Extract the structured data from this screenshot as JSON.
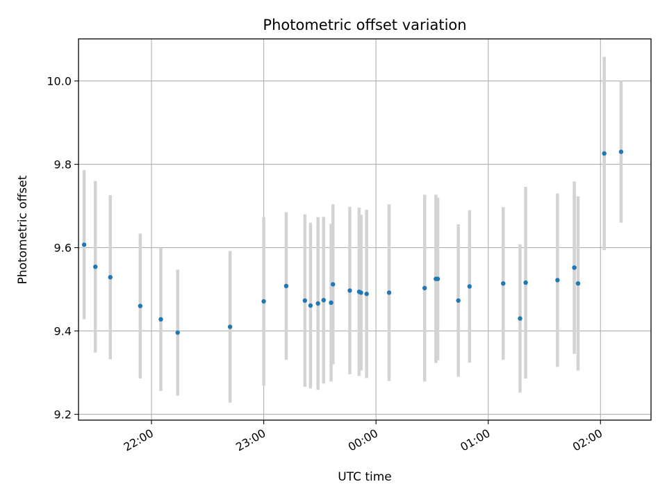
{
  "chart_data": {
    "type": "scatter",
    "title": "Photometric offset variation",
    "xlabel": "UTC time",
    "ylabel": "Photometric offset",
    "x_ticks": [
      "22:00",
      "23:00",
      "00:00",
      "01:00",
      "02:00"
    ],
    "y_ticks": [
      "9.2",
      "9.4",
      "9.6",
      "9.8",
      "10.0"
    ],
    "xlim": [
      "21:21",
      "02:27"
    ],
    "ylim": [
      9.186,
      10.101
    ],
    "grid": true,
    "colors": {
      "points": "#1f77b4",
      "errorbars": "#d3d3d3",
      "grid": "#b0b0b0"
    },
    "series": [
      {
        "points": [
          {
            "x": "21:24",
            "y": 9.607,
            "err": 0.179
          },
          {
            "x": "21:30",
            "y": 9.554,
            "err": 0.206
          },
          {
            "x": "21:38",
            "y": 9.529,
            "err": 0.197
          },
          {
            "x": "21:54",
            "y": 9.46,
            "err": 0.174
          },
          {
            "x": "22:05",
            "y": 9.428,
            "err": 0.172
          },
          {
            "x": "22:14",
            "y": 9.396,
            "err": 0.151
          },
          {
            "x": "22:42",
            "y": 9.41,
            "err": 0.182
          },
          {
            "x": "23:00",
            "y": 9.471,
            "err": 0.202
          },
          {
            "x": "23:12",
            "y": 9.508,
            "err": 0.177
          },
          {
            "x": "23:22",
            "y": 9.473,
            "err": 0.207
          },
          {
            "x": "23:25",
            "y": 9.461,
            "err": 0.199
          },
          {
            "x": "23:29",
            "y": 9.466,
            "err": 0.207
          },
          {
            "x": "23:32",
            "y": 9.474,
            "err": 0.2
          },
          {
            "x": "23:36",
            "y": 9.468,
            "err": 0.189
          },
          {
            "x": "23:37",
            "y": 9.512,
            "err": 0.192
          },
          {
            "x": "23:46",
            "y": 9.497,
            "err": 0.201
          },
          {
            "x": "23:51",
            "y": 9.494,
            "err": 0.202
          },
          {
            "x": "23:52",
            "y": 9.492,
            "err": 0.187
          },
          {
            "x": "23:55",
            "y": 9.489,
            "err": 0.202
          },
          {
            "x": "00:07",
            "y": 9.492,
            "err": 0.212
          },
          {
            "x": "00:26",
            "y": 9.503,
            "err": 0.224
          },
          {
            "x": "00:32",
            "y": 9.525,
            "err": 0.202
          },
          {
            "x": "00:33",
            "y": 9.525,
            "err": 0.195
          },
          {
            "x": "00:44",
            "y": 9.473,
            "err": 0.183
          },
          {
            "x": "00:50",
            "y": 9.507,
            "err": 0.183
          },
          {
            "x": "01:08",
            "y": 9.514,
            "err": 0.183
          },
          {
            "x": "01:17",
            "y": 9.43,
            "err": 0.178
          },
          {
            "x": "01:20",
            "y": 9.516,
            "err": 0.23
          },
          {
            "x": "01:37",
            "y": 9.522,
            "err": 0.208
          },
          {
            "x": "01:46",
            "y": 9.552,
            "err": 0.207
          },
          {
            "x": "01:46",
            "y": 9.552,
            "err": 0.18
          },
          {
            "x": "01:48",
            "y": 9.514,
            "err": 0.209
          },
          {
            "x": "02:02",
            "y": 9.826,
            "err": 0.232
          },
          {
            "x": "02:11",
            "y": 9.83,
            "err": 0.17
          }
        ]
      }
    ]
  }
}
